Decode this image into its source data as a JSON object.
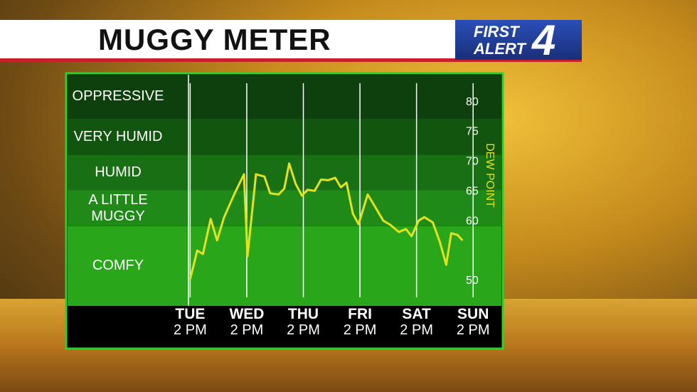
{
  "chart_data": {
    "type": "line",
    "title": "MUGGY METER",
    "y_label": "DEW POINT",
    "x": [
      0,
      3,
      5.4,
      8.7,
      11.4,
      14.4,
      18.9,
      22.8,
      24.3,
      27.9,
      31.5,
      33.9,
      37.5,
      39.9,
      42,
      44.7,
      47.4,
      49.8,
      52.8,
      55.5,
      58.5,
      61.5,
      63.9,
      66.3,
      69,
      71.4,
      75.3,
      78,
      81.9,
      84.9,
      88.5,
      91.5,
      93.9,
      96.9,
      99.3,
      102.9,
      105.9,
      108.6,
      110.7,
      113.4,
      115.5
    ],
    "series": [
      {
        "color": "#e4e21e",
        "values": [
          50.1,
          54.9,
          54.3,
          60.2,
          56.6,
          60.5,
          64.5,
          67.7,
          53.9,
          67.7,
          67.3,
          64.5,
          64.3,
          65.3,
          69.5,
          66.1,
          64.1,
          65.1,
          64.9,
          66.8,
          66.7,
          67.1,
          65.5,
          66.3,
          61.1,
          59.3,
          64.3,
          62.5,
          59.9,
          59.2,
          58.0,
          58.5,
          57.3,
          59.9,
          60.5,
          59.6,
          56.3,
          52.5,
          57.8,
          57.5,
          56.6
        ]
      }
    ],
    "xlim": [
      -52,
      132
    ],
    "xticks": [
      {
        "value": 0,
        "label": "TUE"
      },
      {
        "value": 24,
        "label": "WED"
      },
      {
        "value": 48,
        "label": "THU"
      },
      {
        "value": 72,
        "label": "FRI"
      },
      {
        "value": 96,
        "label": "SAT"
      },
      {
        "value": 120,
        "label": "SUN"
      }
    ],
    "xtick_sublabels": [
      "2 PM",
      "2 PM",
      "2 PM",
      "2 PM",
      "2 PM",
      "2 PM"
    ],
    "ylim": [
      45.6,
      84.4
    ],
    "yticks": [
      50,
      60,
      65,
      70,
      75,
      80
    ],
    "bands": [
      {
        "label": "COMFY",
        "from": 45.6,
        "to": 59,
        "color": "#2aa61b"
      },
      {
        "label": "A LITTLE MUGGY",
        "from": 59,
        "to": 65,
        "color": "#1f8a17"
      },
      {
        "label": "HUMID",
        "from": 65,
        "to": 71,
        "color": "#186f14"
      },
      {
        "label": "VERY HUMID",
        "from": 71,
        "to": 77,
        "color": "#12550f"
      },
      {
        "label": "OPPRESSIVE",
        "from": 77,
        "to": 84.4,
        "color": "#0d400c"
      }
    ]
  },
  "logo": {
    "line1": "FIRST",
    "line2": "ALERT",
    "number": "4"
  }
}
